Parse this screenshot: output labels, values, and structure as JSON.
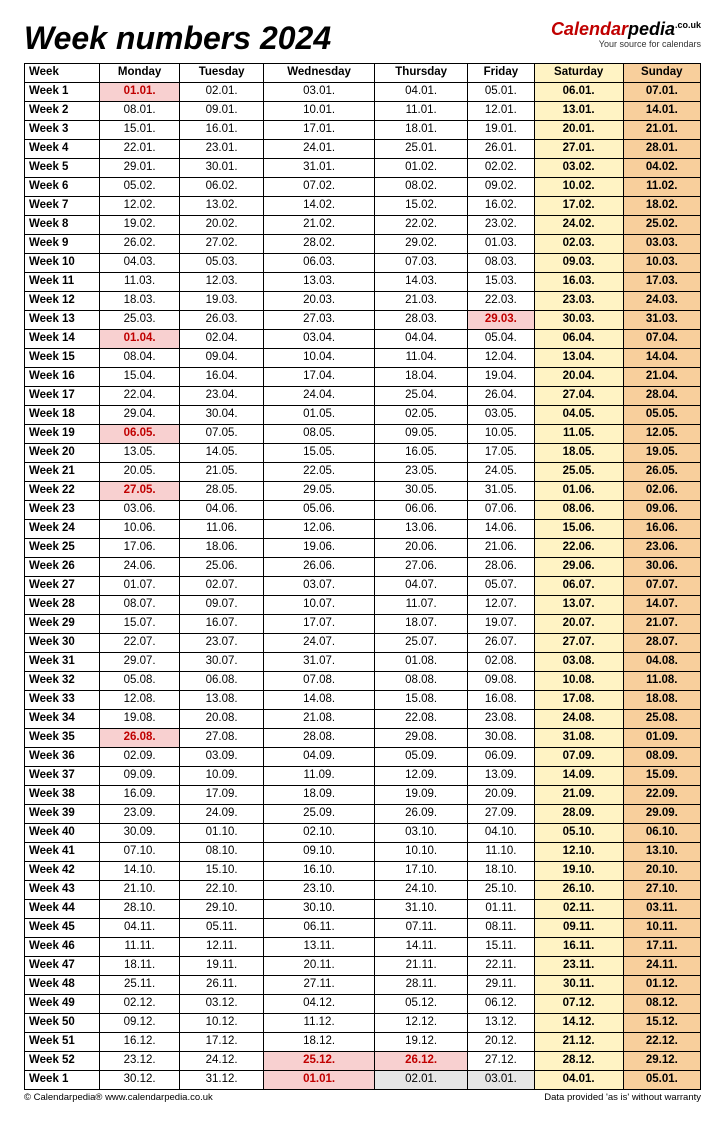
{
  "title": "Week numbers 2024",
  "brand": {
    "part1": "Calendar",
    "part2": "pedia",
    "tld": ".co.uk",
    "tagline": "Your source for calendars"
  },
  "columns": [
    "Week",
    "Monday",
    "Tuesday",
    "Wednesday",
    "Thursday",
    "Friday",
    "Saturday",
    "Sunday"
  ],
  "footer": {
    "left": "© Calendarpedia®   www.calendarpedia.co.uk",
    "right": "Data provided 'as is' without warranty"
  },
  "colors": {
    "saturday_bg": "#fff3c4",
    "sunday_bg": "#f8cf9c",
    "holiday_bg": "#f8d0d0",
    "holiday_text": "#c00000",
    "gray_bg": "#e6e6e6",
    "border": "#000000"
  },
  "rows": [
    {
      "w": "Week 1",
      "d": [
        "01.01.",
        "02.01.",
        "03.01.",
        "04.01.",
        "05.01.",
        "06.01.",
        "07.01."
      ],
      "h": [
        0
      ]
    },
    {
      "w": "Week 2",
      "d": [
        "08.01.",
        "09.01.",
        "10.01.",
        "11.01.",
        "12.01.",
        "13.01.",
        "14.01."
      ],
      "h": []
    },
    {
      "w": "Week 3",
      "d": [
        "15.01.",
        "16.01.",
        "17.01.",
        "18.01.",
        "19.01.",
        "20.01.",
        "21.01."
      ],
      "h": []
    },
    {
      "w": "Week 4",
      "d": [
        "22.01.",
        "23.01.",
        "24.01.",
        "25.01.",
        "26.01.",
        "27.01.",
        "28.01."
      ],
      "h": []
    },
    {
      "w": "Week 5",
      "d": [
        "29.01.",
        "30.01.",
        "31.01.",
        "01.02.",
        "02.02.",
        "03.02.",
        "04.02."
      ],
      "h": []
    },
    {
      "w": "Week 6",
      "d": [
        "05.02.",
        "06.02.",
        "07.02.",
        "08.02.",
        "09.02.",
        "10.02.",
        "11.02."
      ],
      "h": []
    },
    {
      "w": "Week 7",
      "d": [
        "12.02.",
        "13.02.",
        "14.02.",
        "15.02.",
        "16.02.",
        "17.02.",
        "18.02."
      ],
      "h": []
    },
    {
      "w": "Week 8",
      "d": [
        "19.02.",
        "20.02.",
        "21.02.",
        "22.02.",
        "23.02.",
        "24.02.",
        "25.02."
      ],
      "h": []
    },
    {
      "w": "Week 9",
      "d": [
        "26.02.",
        "27.02.",
        "28.02.",
        "29.02.",
        "01.03.",
        "02.03.",
        "03.03."
      ],
      "h": []
    },
    {
      "w": "Week 10",
      "d": [
        "04.03.",
        "05.03.",
        "06.03.",
        "07.03.",
        "08.03.",
        "09.03.",
        "10.03."
      ],
      "h": []
    },
    {
      "w": "Week 11",
      "d": [
        "11.03.",
        "12.03.",
        "13.03.",
        "14.03.",
        "15.03.",
        "16.03.",
        "17.03."
      ],
      "h": []
    },
    {
      "w": "Week 12",
      "d": [
        "18.03.",
        "19.03.",
        "20.03.",
        "21.03.",
        "22.03.",
        "23.03.",
        "24.03."
      ],
      "h": []
    },
    {
      "w": "Week 13",
      "d": [
        "25.03.",
        "26.03.",
        "27.03.",
        "28.03.",
        "29.03.",
        "30.03.",
        "31.03."
      ],
      "h": [
        4
      ]
    },
    {
      "w": "Week 14",
      "d": [
        "01.04.",
        "02.04.",
        "03.04.",
        "04.04.",
        "05.04.",
        "06.04.",
        "07.04."
      ],
      "h": [
        0
      ]
    },
    {
      "w": "Week 15",
      "d": [
        "08.04.",
        "09.04.",
        "10.04.",
        "11.04.",
        "12.04.",
        "13.04.",
        "14.04."
      ],
      "h": []
    },
    {
      "w": "Week 16",
      "d": [
        "15.04.",
        "16.04.",
        "17.04.",
        "18.04.",
        "19.04.",
        "20.04.",
        "21.04."
      ],
      "h": []
    },
    {
      "w": "Week 17",
      "d": [
        "22.04.",
        "23.04.",
        "24.04.",
        "25.04.",
        "26.04.",
        "27.04.",
        "28.04."
      ],
      "h": []
    },
    {
      "w": "Week 18",
      "d": [
        "29.04.",
        "30.04.",
        "01.05.",
        "02.05.",
        "03.05.",
        "04.05.",
        "05.05."
      ],
      "h": []
    },
    {
      "w": "Week 19",
      "d": [
        "06.05.",
        "07.05.",
        "08.05.",
        "09.05.",
        "10.05.",
        "11.05.",
        "12.05."
      ],
      "h": [
        0
      ]
    },
    {
      "w": "Week 20",
      "d": [
        "13.05.",
        "14.05.",
        "15.05.",
        "16.05.",
        "17.05.",
        "18.05.",
        "19.05."
      ],
      "h": []
    },
    {
      "w": "Week 21",
      "d": [
        "20.05.",
        "21.05.",
        "22.05.",
        "23.05.",
        "24.05.",
        "25.05.",
        "26.05."
      ],
      "h": []
    },
    {
      "w": "Week 22",
      "d": [
        "27.05.",
        "28.05.",
        "29.05.",
        "30.05.",
        "31.05.",
        "01.06.",
        "02.06."
      ],
      "h": [
        0
      ]
    },
    {
      "w": "Week 23",
      "d": [
        "03.06.",
        "04.06.",
        "05.06.",
        "06.06.",
        "07.06.",
        "08.06.",
        "09.06."
      ],
      "h": []
    },
    {
      "w": "Week 24",
      "d": [
        "10.06.",
        "11.06.",
        "12.06.",
        "13.06.",
        "14.06.",
        "15.06.",
        "16.06."
      ],
      "h": []
    },
    {
      "w": "Week 25",
      "d": [
        "17.06.",
        "18.06.",
        "19.06.",
        "20.06.",
        "21.06.",
        "22.06.",
        "23.06."
      ],
      "h": []
    },
    {
      "w": "Week 26",
      "d": [
        "24.06.",
        "25.06.",
        "26.06.",
        "27.06.",
        "28.06.",
        "29.06.",
        "30.06."
      ],
      "h": []
    },
    {
      "w": "Week 27",
      "d": [
        "01.07.",
        "02.07.",
        "03.07.",
        "04.07.",
        "05.07.",
        "06.07.",
        "07.07."
      ],
      "h": []
    },
    {
      "w": "Week 28",
      "d": [
        "08.07.",
        "09.07.",
        "10.07.",
        "11.07.",
        "12.07.",
        "13.07.",
        "14.07."
      ],
      "h": []
    },
    {
      "w": "Week 29",
      "d": [
        "15.07.",
        "16.07.",
        "17.07.",
        "18.07.",
        "19.07.",
        "20.07.",
        "21.07."
      ],
      "h": []
    },
    {
      "w": "Week 30",
      "d": [
        "22.07.",
        "23.07.",
        "24.07.",
        "25.07.",
        "26.07.",
        "27.07.",
        "28.07."
      ],
      "h": []
    },
    {
      "w": "Week 31",
      "d": [
        "29.07.",
        "30.07.",
        "31.07.",
        "01.08.",
        "02.08.",
        "03.08.",
        "04.08."
      ],
      "h": []
    },
    {
      "w": "Week 32",
      "d": [
        "05.08.",
        "06.08.",
        "07.08.",
        "08.08.",
        "09.08.",
        "10.08.",
        "11.08."
      ],
      "h": []
    },
    {
      "w": "Week 33",
      "d": [
        "12.08.",
        "13.08.",
        "14.08.",
        "15.08.",
        "16.08.",
        "17.08.",
        "18.08."
      ],
      "h": []
    },
    {
      "w": "Week 34",
      "d": [
        "19.08.",
        "20.08.",
        "21.08.",
        "22.08.",
        "23.08.",
        "24.08.",
        "25.08."
      ],
      "h": []
    },
    {
      "w": "Week 35",
      "d": [
        "26.08.",
        "27.08.",
        "28.08.",
        "29.08.",
        "30.08.",
        "31.08.",
        "01.09."
      ],
      "h": [
        0
      ]
    },
    {
      "w": "Week 36",
      "d": [
        "02.09.",
        "03.09.",
        "04.09.",
        "05.09.",
        "06.09.",
        "07.09.",
        "08.09."
      ],
      "h": []
    },
    {
      "w": "Week 37",
      "d": [
        "09.09.",
        "10.09.",
        "11.09.",
        "12.09.",
        "13.09.",
        "14.09.",
        "15.09."
      ],
      "h": []
    },
    {
      "w": "Week 38",
      "d": [
        "16.09.",
        "17.09.",
        "18.09.",
        "19.09.",
        "20.09.",
        "21.09.",
        "22.09."
      ],
      "h": []
    },
    {
      "w": "Week 39",
      "d": [
        "23.09.",
        "24.09.",
        "25.09.",
        "26.09.",
        "27.09.",
        "28.09.",
        "29.09."
      ],
      "h": []
    },
    {
      "w": "Week 40",
      "d": [
        "30.09.",
        "01.10.",
        "02.10.",
        "03.10.",
        "04.10.",
        "05.10.",
        "06.10."
      ],
      "h": []
    },
    {
      "w": "Week 41",
      "d": [
        "07.10.",
        "08.10.",
        "09.10.",
        "10.10.",
        "11.10.",
        "12.10.",
        "13.10."
      ],
      "h": []
    },
    {
      "w": "Week 42",
      "d": [
        "14.10.",
        "15.10.",
        "16.10.",
        "17.10.",
        "18.10.",
        "19.10.",
        "20.10."
      ],
      "h": []
    },
    {
      "w": "Week 43",
      "d": [
        "21.10.",
        "22.10.",
        "23.10.",
        "24.10.",
        "25.10.",
        "26.10.",
        "27.10."
      ],
      "h": []
    },
    {
      "w": "Week 44",
      "d": [
        "28.10.",
        "29.10.",
        "30.10.",
        "31.10.",
        "01.11.",
        "02.11.",
        "03.11."
      ],
      "h": []
    },
    {
      "w": "Week 45",
      "d": [
        "04.11.",
        "05.11.",
        "06.11.",
        "07.11.",
        "08.11.",
        "09.11.",
        "10.11."
      ],
      "h": []
    },
    {
      "w": "Week 46",
      "d": [
        "11.11.",
        "12.11.",
        "13.11.",
        "14.11.",
        "15.11.",
        "16.11.",
        "17.11."
      ],
      "h": []
    },
    {
      "w": "Week 47",
      "d": [
        "18.11.",
        "19.11.",
        "20.11.",
        "21.11.",
        "22.11.",
        "23.11.",
        "24.11."
      ],
      "h": []
    },
    {
      "w": "Week 48",
      "d": [
        "25.11.",
        "26.11.",
        "27.11.",
        "28.11.",
        "29.11.",
        "30.11.",
        "01.12."
      ],
      "h": []
    },
    {
      "w": "Week 49",
      "d": [
        "02.12.",
        "03.12.",
        "04.12.",
        "05.12.",
        "06.12.",
        "07.12.",
        "08.12."
      ],
      "h": []
    },
    {
      "w": "Week 50",
      "d": [
        "09.12.",
        "10.12.",
        "11.12.",
        "12.12.",
        "13.12.",
        "14.12.",
        "15.12."
      ],
      "h": []
    },
    {
      "w": "Week 51",
      "d": [
        "16.12.",
        "17.12.",
        "18.12.",
        "19.12.",
        "20.12.",
        "21.12.",
        "22.12."
      ],
      "h": []
    },
    {
      "w": "Week 52",
      "d": [
        "23.12.",
        "24.12.",
        "25.12.",
        "26.12.",
        "27.12.",
        "28.12.",
        "29.12."
      ],
      "h": [
        2,
        3
      ]
    },
    {
      "w": "Week 1",
      "d": [
        "30.12.",
        "31.12.",
        "01.01.",
        "02.01.",
        "03.01.",
        "04.01.",
        "05.01."
      ],
      "h": [
        2
      ],
      "g": [
        3,
        4
      ]
    }
  ]
}
